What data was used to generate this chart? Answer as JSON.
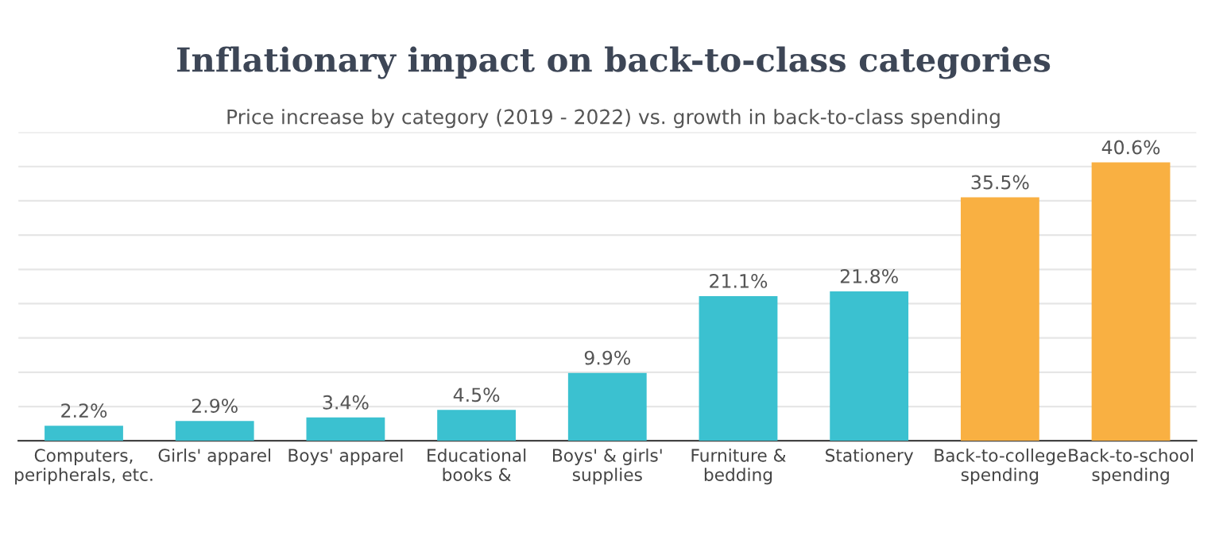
{
  "chart_data": {
    "type": "bar",
    "title": "Inflationary impact on back-to-class categories",
    "subtitle": "Price increase by category (2019 - 2022) vs. growth in back-to-class spending",
    "categories": [
      "Computers,\nperipherals, etc.",
      "Girls' apparel",
      "Boys' apparel",
      "Educational\nbooks &",
      "Boys' & girls'\nsupplies",
      "Furniture &\nbedding",
      "Stationery",
      "Back-to-college\nspending",
      "Back-to-school\nspending"
    ],
    "values": [
      2.2,
      2.9,
      3.4,
      4.5,
      9.9,
      21.1,
      21.8,
      35.5,
      40.6
    ],
    "value_labels": [
      "2.2%",
      "2.9%",
      "3.4%",
      "4.5%",
      "9.9%",
      "21.1%",
      "21.8%",
      "35.5%",
      "40.6%"
    ],
    "colors": [
      "#3bc1d0",
      "#3bc1d0",
      "#3bc1d0",
      "#3bc1d0",
      "#3bc1d0",
      "#3bc1d0",
      "#3bc1d0",
      "#f9b042",
      "#f9b042"
    ],
    "ylim": [
      0,
      45
    ],
    "yticks": [
      {
        "value": 0,
        "label": null
      },
      {
        "value": 5,
        "label": null
      },
      {
        "value": 10,
        "label": null
      },
      {
        "value": 15,
        "label": null
      },
      {
        "value": 20,
        "label": null
      },
      {
        "value": 25,
        "label": null
      },
      {
        "value": 30,
        "label": null
      },
      {
        "value": 35,
        "label": null
      },
      {
        "value": 40,
        "label": null
      },
      {
        "value": 45,
        "label": null
      }
    ],
    "grid": "y",
    "tick_labels": "x",
    "legend": false
  }
}
